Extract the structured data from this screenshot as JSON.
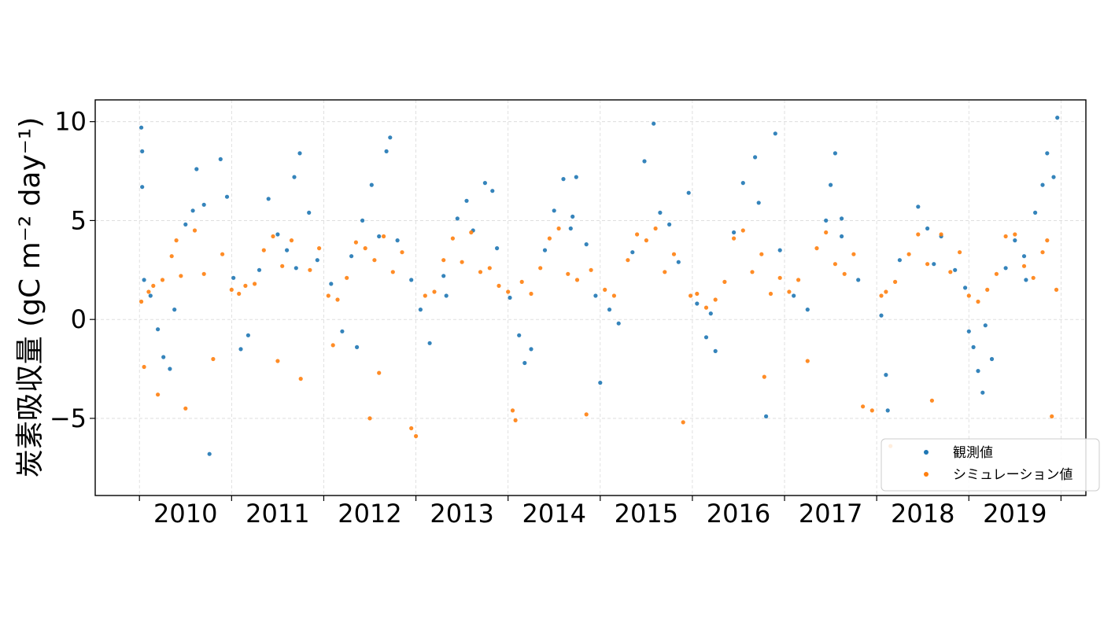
{
  "chart_data": {
    "type": "scatter",
    "title": "",
    "xlabel": "",
    "ylabel": "炭素吸収量 (gC m⁻² day⁻¹)",
    "ylim": [
      -8.9,
      11.1
    ],
    "yticks": [
      -5,
      0,
      5,
      10
    ],
    "ytick_labels": [
      "−5",
      "0",
      "5",
      "10"
    ],
    "xlim": [
      2009.52,
      2020.27
    ],
    "xtick_boundaries": [
      2010,
      2011,
      2012,
      2013,
      2014,
      2015,
      2016,
      2017,
      2018,
      2019,
      2020
    ],
    "xtick_labels": [
      "2010",
      "2011",
      "2012",
      "2013",
      "2014",
      "2015",
      "2016",
      "2017",
      "2018",
      "2019"
    ],
    "grid": true,
    "legend_position": "lower-right",
    "series": [
      {
        "name": "観測値",
        "color": "#1f77b4",
        "points": [
          [
            2010.02,
            9.7
          ],
          [
            2010.03,
            8.5
          ],
          [
            2010.03,
            6.7
          ],
          [
            2010.05,
            2.0
          ],
          [
            2010.12,
            1.2
          ],
          [
            2010.2,
            -0.5
          ],
          [
            2010.26,
            -1.9
          ],
          [
            2010.33,
            -2.5
          ],
          [
            2010.38,
            0.5
          ],
          [
            2010.5,
            4.8
          ],
          [
            2010.58,
            5.5
          ],
          [
            2010.62,
            7.6
          ],
          [
            2010.7,
            5.8
          ],
          [
            2010.76,
            -6.8
          ],
          [
            2010.88,
            8.1
          ],
          [
            2010.95,
            6.2
          ],
          [
            2011.02,
            2.1
          ],
          [
            2011.1,
            -1.5
          ],
          [
            2011.18,
            -0.8
          ],
          [
            2011.3,
            2.5
          ],
          [
            2011.4,
            6.1
          ],
          [
            2011.5,
            4.3
          ],
          [
            2011.6,
            3.5
          ],
          [
            2011.68,
            7.2
          ],
          [
            2011.74,
            8.4
          ],
          [
            2011.84,
            5.4
          ],
          [
            2011.93,
            3.0
          ],
          [
            2012.08,
            1.8
          ],
          [
            2012.2,
            -0.6
          ],
          [
            2012.3,
            3.2
          ],
          [
            2012.42,
            5.0
          ],
          [
            2012.52,
            6.8
          ],
          [
            2012.6,
            4.2
          ],
          [
            2012.68,
            8.5
          ],
          [
            2012.72,
            9.2
          ],
          [
            2012.8,
            4.0
          ],
          [
            2012.95,
            2.0
          ],
          [
            2013.05,
            0.5
          ],
          [
            2013.15,
            -1.2
          ],
          [
            2013.3,
            2.2
          ],
          [
            2013.45,
            5.1
          ],
          [
            2013.55,
            6.0
          ],
          [
            2013.62,
            4.5
          ],
          [
            2013.75,
            6.9
          ],
          [
            2013.88,
            3.6
          ],
          [
            2014.02,
            1.1
          ],
          [
            2014.12,
            -0.8
          ],
          [
            2014.18,
            -2.2
          ],
          [
            2014.25,
            -1.5
          ],
          [
            2014.4,
            3.5
          ],
          [
            2014.5,
            5.5
          ],
          [
            2014.6,
            7.1
          ],
          [
            2014.68,
            4.6
          ],
          [
            2014.74,
            7.2
          ],
          [
            2014.85,
            3.8
          ],
          [
            2014.95,
            1.2
          ],
          [
            2015.1,
            0.5
          ],
          [
            2015.2,
            -0.2
          ],
          [
            2015.35,
            3.4
          ],
          [
            2015.48,
            8.0
          ],
          [
            2015.58,
            9.9
          ],
          [
            2015.65,
            5.4
          ],
          [
            2015.75,
            4.8
          ],
          [
            2015.85,
            2.9
          ],
          [
            2016.05,
            0.8
          ],
          [
            2016.15,
            -0.9
          ],
          [
            2016.25,
            -1.6
          ],
          [
            2016.45,
            4.4
          ],
          [
            2016.55,
            6.9
          ],
          [
            2016.68,
            8.2
          ],
          [
            2016.72,
            5.9
          ],
          [
            2016.8,
            -4.9
          ],
          [
            2016.9,
            9.4
          ],
          [
            2016.95,
            3.5
          ],
          [
            2017.1,
            1.2
          ],
          [
            2017.25,
            0.5
          ],
          [
            2017.45,
            5.0
          ],
          [
            2017.5,
            6.8
          ],
          [
            2017.55,
            8.4
          ],
          [
            2017.62,
            4.2
          ],
          [
            2017.8,
            2.0
          ],
          [
            2018.05,
            0.2
          ],
          [
            2018.1,
            -2.8
          ],
          [
            2018.12,
            -4.6
          ],
          [
            2018.25,
            3.0
          ],
          [
            2018.45,
            5.7
          ],
          [
            2018.55,
            4.6
          ],
          [
            2018.7,
            4.2
          ],
          [
            2018.85,
            2.5
          ],
          [
            2018.96,
            1.6
          ],
          [
            2019.0,
            -0.6
          ],
          [
            2019.05,
            -1.4
          ],
          [
            2019.1,
            -2.6
          ],
          [
            2019.15,
            -3.7
          ],
          [
            2019.25,
            -2.0
          ],
          [
            2019.4,
            2.6
          ],
          [
            2019.5,
            4.0
          ],
          [
            2019.6,
            3.2
          ],
          [
            2019.72,
            5.4
          ],
          [
            2019.8,
            6.8
          ],
          [
            2019.85,
            8.4
          ],
          [
            2019.92,
            7.2
          ],
          [
            2019.96,
            10.2
          ],
          [
            2013.83,
            6.5
          ],
          [
            2015.96,
            6.4
          ],
          [
            2017.62,
            5.1
          ],
          [
            2015.0,
            -3.2
          ],
          [
            2011.7,
            2.6
          ],
          [
            2014.7,
            5.2
          ],
          [
            2019.62,
            2.0
          ],
          [
            2012.36,
            -1.4
          ],
          [
            2018.62,
            2.8
          ],
          [
            2019.18,
            -0.3
          ],
          [
            2016.2,
            0.3
          ],
          [
            2013.33,
            1.2
          ]
        ]
      },
      {
        "name": "シミュレーション値",
        "color": "#ff7f0e",
        "points": [
          [
            2010.02,
            0.9
          ],
          [
            2010.05,
            -2.4
          ],
          [
            2010.1,
            1.4
          ],
          [
            2010.15,
            1.7
          ],
          [
            2010.2,
            -3.8
          ],
          [
            2010.25,
            2.0
          ],
          [
            2010.35,
            3.2
          ],
          [
            2010.4,
            4.0
          ],
          [
            2010.45,
            2.2
          ],
          [
            2010.5,
            -4.5
          ],
          [
            2010.6,
            4.5
          ],
          [
            2010.7,
            2.3
          ],
          [
            2010.8,
            -2.0
          ],
          [
            2010.9,
            3.3
          ],
          [
            2011.0,
            1.5
          ],
          [
            2011.08,
            1.3
          ],
          [
            2011.15,
            1.7
          ],
          [
            2011.25,
            1.8
          ],
          [
            2011.35,
            3.5
          ],
          [
            2011.45,
            4.2
          ],
          [
            2011.55,
            2.7
          ],
          [
            2011.65,
            4.0
          ],
          [
            2011.75,
            -3.0
          ],
          [
            2011.85,
            2.5
          ],
          [
            2011.95,
            3.6
          ],
          [
            2012.05,
            1.2
          ],
          [
            2012.1,
            -1.3
          ],
          [
            2012.15,
            1.0
          ],
          [
            2012.25,
            2.1
          ],
          [
            2012.35,
            3.9
          ],
          [
            2012.45,
            3.6
          ],
          [
            2012.55,
            3.0
          ],
          [
            2012.6,
            -2.7
          ],
          [
            2012.65,
            4.2
          ],
          [
            2012.75,
            2.4
          ],
          [
            2012.85,
            3.4
          ],
          [
            2012.95,
            -5.5
          ],
          [
            2013.0,
            -5.9
          ],
          [
            2013.1,
            1.2
          ],
          [
            2013.2,
            1.4
          ],
          [
            2013.3,
            3.0
          ],
          [
            2013.4,
            4.1
          ],
          [
            2013.5,
            2.9
          ],
          [
            2013.6,
            4.4
          ],
          [
            2013.7,
            2.4
          ],
          [
            2013.8,
            2.6
          ],
          [
            2013.9,
            1.7
          ],
          [
            2014.0,
            1.4
          ],
          [
            2014.05,
            -4.6
          ],
          [
            2014.08,
            -5.1
          ],
          [
            2014.15,
            1.9
          ],
          [
            2014.25,
            1.3
          ],
          [
            2014.35,
            2.6
          ],
          [
            2014.45,
            4.1
          ],
          [
            2014.55,
            4.6
          ],
          [
            2014.65,
            2.3
          ],
          [
            2014.75,
            2.0
          ],
          [
            2014.85,
            -4.8
          ],
          [
            2014.9,
            2.5
          ],
          [
            2015.05,
            1.5
          ],
          [
            2015.15,
            1.2
          ],
          [
            2015.3,
            3.0
          ],
          [
            2015.4,
            4.3
          ],
          [
            2015.5,
            4.0
          ],
          [
            2015.6,
            4.6
          ],
          [
            2015.7,
            2.4
          ],
          [
            2015.8,
            3.3
          ],
          [
            2015.9,
            -5.2
          ],
          [
            2015.98,
            1.2
          ],
          [
            2016.05,
            1.3
          ],
          [
            2016.15,
            0.6
          ],
          [
            2016.25,
            1.0
          ],
          [
            2016.35,
            1.9
          ],
          [
            2016.45,
            4.1
          ],
          [
            2016.55,
            4.5
          ],
          [
            2016.65,
            2.4
          ],
          [
            2016.75,
            3.3
          ],
          [
            2016.85,
            1.3
          ],
          [
            2016.95,
            2.1
          ],
          [
            2017.05,
            1.4
          ],
          [
            2017.15,
            2.0
          ],
          [
            2017.25,
            -2.1
          ],
          [
            2017.35,
            3.6
          ],
          [
            2017.45,
            4.4
          ],
          [
            2017.55,
            2.8
          ],
          [
            2017.65,
            2.3
          ],
          [
            2017.75,
            3.3
          ],
          [
            2017.85,
            -4.4
          ],
          [
            2017.95,
            -4.6
          ],
          [
            2018.05,
            1.2
          ],
          [
            2018.1,
            1.4
          ],
          [
            2018.15,
            -6.4
          ],
          [
            2018.2,
            1.9
          ],
          [
            2018.35,
            3.3
          ],
          [
            2018.45,
            4.3
          ],
          [
            2018.55,
            2.8
          ],
          [
            2018.6,
            -4.1
          ],
          [
            2018.7,
            4.3
          ],
          [
            2018.8,
            2.4
          ],
          [
            2018.9,
            3.4
          ],
          [
            2019.0,
            1.2
          ],
          [
            2019.1,
            0.9
          ],
          [
            2019.2,
            1.5
          ],
          [
            2019.3,
            2.3
          ],
          [
            2019.4,
            4.2
          ],
          [
            2019.5,
            4.3
          ],
          [
            2019.6,
            2.7
          ],
          [
            2019.7,
            2.1
          ],
          [
            2019.8,
            3.4
          ],
          [
            2019.85,
            4.0
          ],
          [
            2019.9,
            -4.9
          ],
          [
            2019.95,
            1.5
          ],
          [
            2012.5,
            -5.0
          ],
          [
            2011.5,
            -2.1
          ],
          [
            2016.78,
            -2.9
          ]
        ]
      }
    ]
  }
}
